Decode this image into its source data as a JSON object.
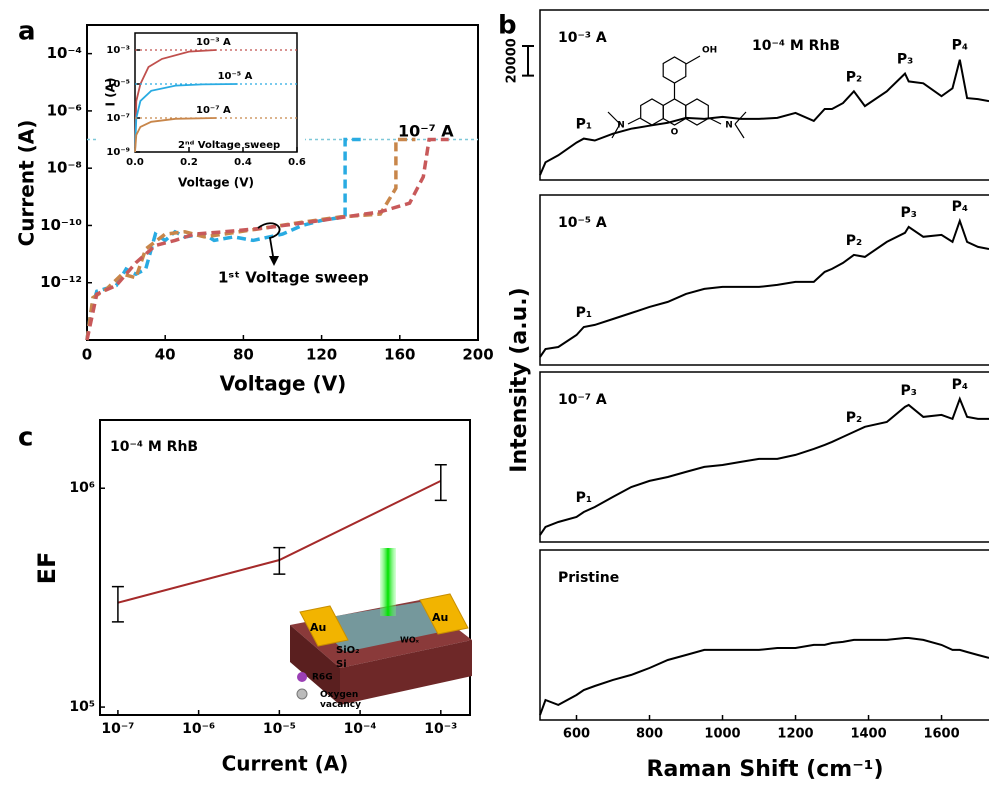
{
  "chart_data": [
    {
      "type": "line",
      "panel_label": "a",
      "xlabel": "Voltage (V)",
      "ylabel": "Current (A)",
      "log_y": true,
      "xlim": [
        0,
        200
      ],
      "xticks": [
        0,
        40,
        80,
        120,
        160,
        200
      ],
      "ylim": [
        1e-14,
        0.001
      ],
      "yticks": [
        {
          "value": 1e-12,
          "label": "10⁻¹²"
        },
        {
          "value": 1e-10,
          "label": "10⁻¹⁰"
        },
        {
          "value": 1e-08,
          "label": "10⁻⁸"
        },
        {
          "value": 1e-06,
          "label": "10⁻⁶"
        },
        {
          "value": 0.0001,
          "label": "10⁻⁴"
        }
      ],
      "reference_line": 1e-07,
      "annotations": [
        "10⁻⁷ A",
        "1ˢᵗ Voltage sweep"
      ],
      "series": [
        {
          "color": "#29abe2",
          "dashed": true,
          "x": [
            0,
            2,
            5,
            15,
            20,
            25,
            30,
            35,
            40,
            45,
            50,
            60,
            65,
            75,
            85,
            100,
            110,
            120,
            132,
            132,
            140
          ],
          "values": [
            1e-14,
            1e-13,
            5e-13,
            8e-13,
            3e-12,
            2e-12,
            3e-12,
            5e-11,
            3e-11,
            6e-11,
            4e-11,
            5e-11,
            3e-11,
            4e-11,
            3e-11,
            5e-11,
            1e-10,
            1.5e-10,
            2e-10,
            1e-07,
            1e-07
          ]
        },
        {
          "color": "#c8864a",
          "dashed": true,
          "x": [
            0,
            3,
            10,
            18,
            25,
            30,
            40,
            50,
            60,
            70,
            90,
            110,
            130,
            150,
            158,
            158,
            168
          ],
          "values": [
            1e-14,
            3e-13,
            6e-13,
            2e-12,
            1.5e-12,
            1.5e-11,
            5e-11,
            6e-11,
            4e-11,
            5e-11,
            8e-11,
            1.3e-10,
            2e-10,
            2.5e-10,
            2e-09,
            1e-07,
            1e-07
          ]
        },
        {
          "color": "#c8595a",
          "dashed": true,
          "x": [
            0,
            5,
            15,
            25,
            35,
            45,
            55,
            70,
            90,
            120,
            150,
            165,
            172,
            175,
            185
          ],
          "values": [
            1e-14,
            4e-13,
            8e-13,
            5e-12,
            2e-11,
            3e-11,
            5e-11,
            6e-11,
            8e-11,
            1.5e-10,
            3e-10,
            6e-10,
            5e-09,
            1e-07,
            1e-07
          ]
        }
      ]
    },
    {
      "type": "line",
      "xlabel": "Voltage (V)",
      "ylabel": "I (A)",
      "log_y": true,
      "xlim": [
        0,
        0.6
      ],
      "xticks": [
        {
          "value": 0,
          "label": "0.0"
        },
        0.2,
        0.4,
        0.6
      ],
      "ylim": [
        1e-09,
        0.01
      ],
      "yticks": [
        {
          "value": 1e-09,
          "label": "10⁻⁹"
        },
        {
          "value": 1e-07,
          "label": "10⁻⁷"
        },
        {
          "value": 1e-05,
          "label": "10⁻⁵"
        },
        {
          "value": 0.001,
          "label": "10⁻³"
        }
      ],
      "annotations": [
        "2ⁿᵈ Voltage sweep"
      ],
      "series": [
        {
          "label": "10⁻³ A",
          "level": 0.001,
          "color": "#c0504d",
          "x": [
            0,
            0.005,
            0.02,
            0.05,
            0.1,
            0.2,
            0.3
          ],
          "values": [
            1e-09,
            1e-06,
            1e-05,
            0.0001,
            0.0003,
            0.0008,
            0.001
          ]
        },
        {
          "label": "10⁻⁵ A",
          "level": 1e-05,
          "color": "#29abe2",
          "x": [
            0,
            0.005,
            0.02,
            0.06,
            0.15,
            0.25,
            0.38
          ],
          "values": [
            1e-09,
            1e-07,
            1e-06,
            4e-06,
            8e-06,
            9.5e-06,
            1e-05
          ]
        },
        {
          "label": "10⁻⁷ A",
          "level": 1e-07,
          "color": "#c8864a",
          "x": [
            0,
            0.005,
            0.02,
            0.06,
            0.15,
            0.3
          ],
          "values": [
            1e-09,
            1e-08,
            3e-08,
            6e-08,
            9e-08,
            1e-07
          ]
        }
      ]
    },
    {
      "type": "spectra",
      "panel_label": "b",
      "title": "10⁻⁴ M RhB",
      "xlabel": "Raman Shift (cm⁻¹)",
      "ylabel": "Intensity (a.u.)",
      "xlim": [
        500,
        1730
      ],
      "xticks": [
        600,
        800,
        1000,
        1200,
        1400,
        1600
      ],
      "ylim": [
        0,
        115000
      ],
      "scale_bar": 20000,
      "color": "#000000",
      "molecule_labels": [
        "OH",
        "O",
        "N",
        "N"
      ],
      "x": [
        500,
        515,
        550,
        600,
        620,
        650,
        700,
        750,
        800,
        850,
        900,
        950,
        1000,
        1050,
        1100,
        1150,
        1200,
        1250,
        1280,
        1300,
        1330,
        1360,
        1390,
        1450,
        1500,
        1510,
        1550,
        1600,
        1630,
        1650,
        1670,
        1700,
        1730
      ],
      "panels": [
        {
          "label": "10⁻³ A",
          "values": [
            3300,
            12000,
            16700,
            25300,
            28000,
            26700,
            31300,
            34700,
            36700,
            38700,
            42000,
            41300,
            42700,
            41300,
            41300,
            42000,
            45400,
            40000,
            48000,
            48000,
            52000,
            60000,
            50000,
            60000,
            72000,
            66700,
            65400,
            56700,
            62000,
            81400,
            55400,
            54700,
            53400
          ],
          "peaks": [
            {
              "label": "P₁",
              "x": 620
            },
            {
              "label": "P₂",
              "x": 1360
            },
            {
              "label": "P₃",
              "x": 1500
            },
            {
              "label": "P₄",
              "x": 1650
            }
          ]
        },
        {
          "label": "10⁻⁵ A",
          "values": [
            5400,
            10800,
            12200,
            20300,
            25700,
            27100,
            31100,
            35200,
            39300,
            42700,
            48100,
            51500,
            52800,
            52800,
            52800,
            54200,
            56200,
            56200,
            63000,
            65000,
            69100,
            74500,
            73100,
            83300,
            89400,
            93400,
            86700,
            88000,
            83300,
            97500,
            83300,
            79900,
            78500
          ],
          "peaks": [
            {
              "label": "P₁",
              "x": 620
            },
            {
              "label": "P₂",
              "x": 1360
            },
            {
              "label": "P₃",
              "x": 1510
            },
            {
              "label": "P₄",
              "x": 1650
            }
          ]
        },
        {
          "label": "10⁻⁷ A",
          "values": [
            4700,
            10200,
            13500,
            16900,
            20300,
            23700,
            30500,
            37200,
            41300,
            44000,
            47400,
            50800,
            52100,
            54200,
            56200,
            56200,
            58900,
            63000,
            65700,
            67700,
            71100,
            74500,
            77900,
            81200,
            91400,
            92700,
            84600,
            86000,
            83300,
            96800,
            84600,
            83300,
            83300
          ],
          "peaks": [
            {
              "label": "P₁",
              "x": 620
            },
            {
              "label": "P₂",
              "x": 1360
            },
            {
              "label": "P₃",
              "x": 1510
            },
            {
              "label": "P₄",
              "x": 1650
            }
          ]
        },
        {
          "label": "Pristine",
          "values": [
            3400,
            13500,
            10200,
            16900,
            20300,
            23000,
            27100,
            30500,
            35200,
            40600,
            44000,
            47400,
            47400,
            47400,
            47400,
            48700,
            48700,
            50800,
            50800,
            52100,
            52800,
            54200,
            54200,
            54200,
            55500,
            55500,
            54200,
            50800,
            47400,
            47400,
            46000,
            44000,
            42000
          ],
          "peaks": []
        }
      ]
    },
    {
      "type": "line",
      "panel_label": "c",
      "xlabel": "Current (A)",
      "ylabel": "EF",
      "log_x": true,
      "log_y": true,
      "xlim": [
        6e-08,
        0.0023
      ],
      "xticks": [
        {
          "value": 1e-07,
          "label": "10⁻⁷"
        },
        {
          "value": 1e-06,
          "label": "10⁻⁶"
        },
        {
          "value": 1e-05,
          "label": "10⁻⁵"
        },
        {
          "value": 0.0001,
          "label": "10⁻⁴"
        },
        {
          "value": 0.001,
          "label": "10⁻³"
        }
      ],
      "ylim": [
        92000,
        2050000
      ],
      "yticks": [
        {
          "value": 100000,
          "label": "10⁵"
        },
        {
          "value": 1000000,
          "label": "10⁶"
        }
      ],
      "annotations": [
        "10⁻⁴ M RhB"
      ],
      "inset_labels": [
        "Au",
        "Au",
        "WOₓ",
        "SiO₂",
        "Si",
        "R6G",
        "Oxygen vacancy"
      ],
      "series": [
        {
          "color": "#a52a2a",
          "x": [
            1e-07,
            1e-05,
            0.001
          ],
          "values": [
            300000,
            470000,
            1080000
          ],
          "errors": [
            55000,
            65000,
            200000
          ]
        }
      ]
    }
  ]
}
